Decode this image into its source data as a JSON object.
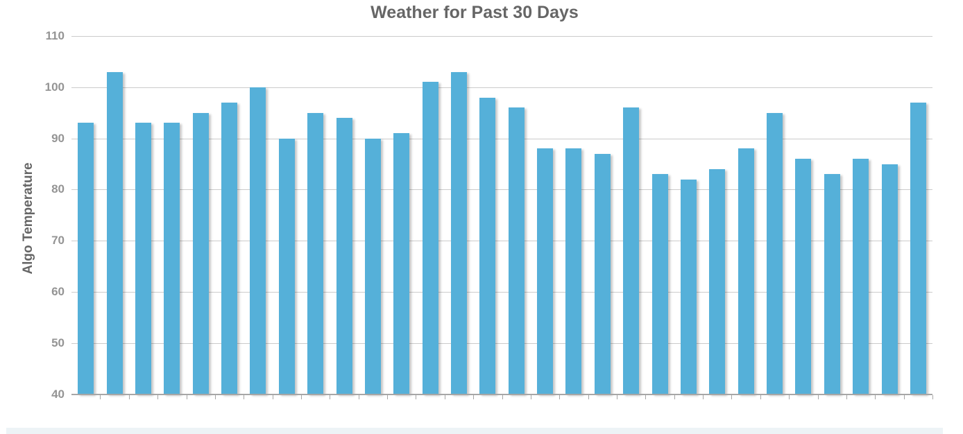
{
  "chart_data": {
    "type": "bar",
    "title": "Weather for Past 30 Days",
    "xlabel": "",
    "ylabel": "Algo Temperature",
    "x_tick_labels": "none (30 unlabeled day ticks)",
    "values": [
      93,
      103,
      93,
      93,
      95,
      97,
      100,
      90,
      95,
      94,
      90,
      91,
      101,
      103,
      98,
      96,
      88,
      88,
      87,
      96,
      83,
      82,
      84,
      88,
      95,
      86,
      83,
      86,
      85,
      97
    ],
    "num_bars": 30,
    "ylim": [
      40,
      110
    ],
    "yticks": [
      40,
      50,
      60,
      70,
      80,
      90,
      100,
      110
    ],
    "grid": "horizontal",
    "legend": "none",
    "bar_color": "#55b0d9",
    "gridline_color": "#cbcbcb",
    "axis_color": "#a6a6a6",
    "title_color": "#666666",
    "tick_label_color": "#949494"
  },
  "footer": {
    "strip_color": "#edf3f6"
  }
}
